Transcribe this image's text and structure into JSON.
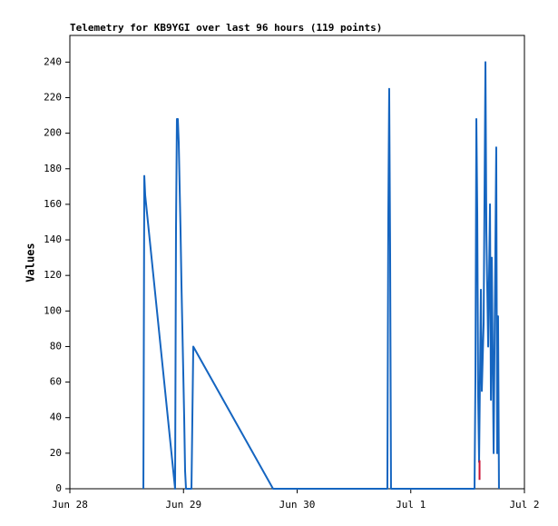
{
  "chart_data": {
    "type": "line",
    "title": "Telemetry for KB9YGI over last 96 hours (119 points)",
    "y_label": "Values",
    "xlim": [
      0,
      4
    ],
    "xticks": [
      {
        "value": 0,
        "label": "Jun 28"
      },
      {
        "value": 1,
        "label": "Jun 29"
      },
      {
        "value": 2,
        "label": "Jun 30"
      },
      {
        "value": 3,
        "label": "Jul 1"
      },
      {
        "value": 4,
        "label": "Jul 2"
      }
    ],
    "ylim": [
      0,
      255
    ],
    "yticks": [
      0,
      20,
      40,
      60,
      80,
      100,
      120,
      140,
      160,
      180,
      200,
      220,
      240
    ],
    "series": [
      {
        "color": "#1565c0",
        "x": [
          0.647,
          0.655,
          0.663,
          0.926,
          0.934,
          0.942,
          0.95,
          0.958,
          0.966,
          0.974,
          0.982,
          0.99,
          0.998,
          1.006,
          1.014,
          1.022,
          1.07,
          1.078,
          1.086,
          1.788,
          2.794,
          2.802,
          2.81,
          2.818,
          2.826,
          3.561,
          3.569,
          3.577,
          3.585,
          3.593,
          3.601,
          3.617,
          3.625,
          3.641,
          3.657,
          3.665,
          3.681,
          3.697,
          3.705,
          3.713,
          3.729,
          3.737,
          3.752,
          3.76,
          3.768,
          3.776
        ],
        "values": [
          0,
          176,
          165,
          0,
          145,
          208,
          208,
          195,
          170,
          145,
          115,
          90,
          65,
          40,
          10,
          0,
          0,
          40,
          80,
          0,
          0,
          152,
          225,
          137,
          0,
          0,
          64,
          208,
          155,
          52,
          15,
          112,
          55,
          93,
          240,
          145,
          80,
          160,
          50,
          130,
          20,
          80,
          192,
          20,
          97,
          0
        ]
      },
      {
        "color": "#cc1133",
        "x": [
          3.605,
          3.605
        ],
        "values": [
          5,
          16
        ]
      }
    ]
  }
}
